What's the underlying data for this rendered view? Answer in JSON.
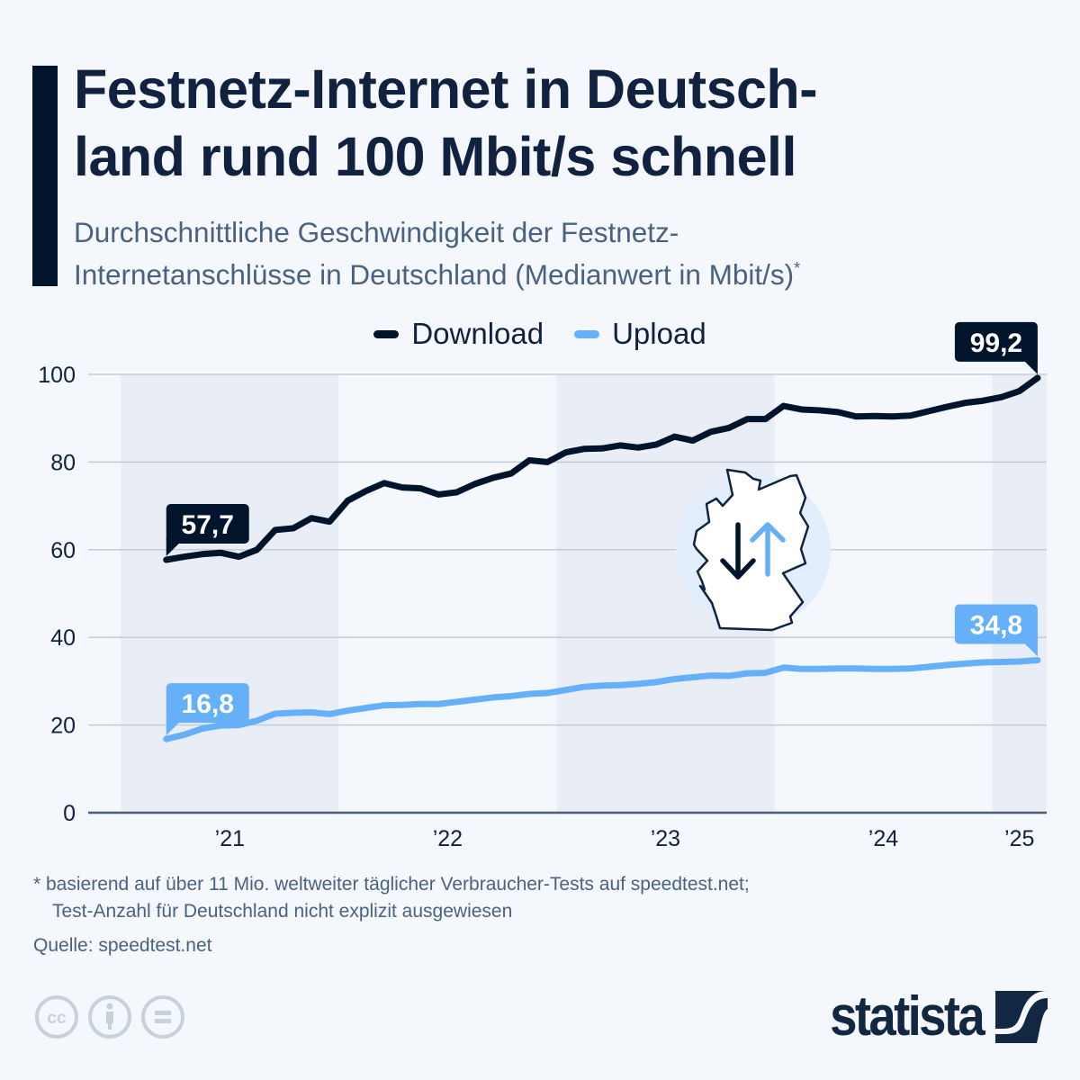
{
  "header": {
    "title": "Festnetz-Internet in Deutsch-land rund 100 Mbit/s schnell",
    "title_line1": "Festnetz-Internet in Deutsch-",
    "title_line2": "land rund 100 Mbit/s schnell",
    "subtitle_line1": "Durchschnittliche Geschwindigkeit der Festnetz-",
    "subtitle_line2": "Internetanschlüsse in Deutschland (Medianwert in Mbit/s)",
    "subtitle_marker": "*"
  },
  "colors": {
    "download": "#00152b",
    "upload": "#66b0f9",
    "background": "#f4f7fb",
    "band": "#e9eef6",
    "grid": "#c4ccd8",
    "text": "#10223f",
    "muted_text": "#4a6280"
  },
  "chart_data": {
    "type": "line",
    "title": "Festnetz-Internet in Deutschland rund 100 Mbit/s schnell",
    "subtitle": "Durchschnittliche Geschwindigkeit der Festnetz-Internetanschlüsse in Deutschland (Medianwert in Mbit/s)*",
    "xlabel": "",
    "ylabel": "",
    "ylim": [
      0,
      100
    ],
    "yticks": [
      0,
      20,
      40,
      60,
      80,
      100
    ],
    "ytick_labels": [
      "0",
      "20",
      "40",
      "60",
      "80",
      "100"
    ],
    "x_start": "2021-03",
    "x_end": "2025-03",
    "x_frequency": "monthly",
    "x_range_years": [
      2020.85,
      2025.25
    ],
    "xticks": [
      {
        "label": "’21",
        "year": 2021
      },
      {
        "label": "’22",
        "year": 2022
      },
      {
        "label": "’23",
        "year": 2023
      },
      {
        "label": "’24",
        "year": 2024
      },
      {
        "label": "’25",
        "year": 2025
      }
    ],
    "shaded_years": [
      2021,
      2023,
      2025
    ],
    "grid": true,
    "legend_position": "top-center",
    "series": [
      {
        "name": "Download",
        "color": "#00152b",
        "values": [
          57.7,
          58.4,
          59.0,
          59.3,
          58.4,
          60.0,
          64.5,
          64.9,
          67.2,
          66.4,
          71.2,
          73.4,
          75.2,
          74.2,
          74.0,
          72.6,
          73.1,
          75.0,
          76.4,
          77.4,
          80.4,
          80.0,
          82.2,
          83.0,
          83.1,
          83.8,
          83.3,
          84.0,
          85.8,
          84.9,
          86.9,
          87.8,
          89.8,
          89.8,
          92.8,
          92.0,
          91.8,
          91.4,
          90.4,
          90.5,
          90.4,
          90.6,
          91.6,
          92.6,
          93.5,
          94.0,
          94.8,
          96.2,
          99.2
        ],
        "start_label": "57,7",
        "end_label": "99,2"
      },
      {
        "name": "Upload",
        "color": "#66b0f9",
        "values": [
          16.8,
          17.8,
          19.2,
          19.9,
          20.0,
          21.0,
          22.6,
          22.8,
          22.9,
          22.5,
          23.3,
          23.9,
          24.5,
          24.6,
          24.8,
          24.8,
          25.3,
          25.8,
          26.3,
          26.6,
          27.1,
          27.3,
          28.0,
          28.7,
          29.0,
          29.1,
          29.4,
          29.8,
          30.5,
          30.9,
          31.3,
          31.2,
          31.8,
          31.9,
          33.1,
          32.8,
          32.8,
          32.9,
          32.9,
          32.8,
          32.8,
          32.9,
          33.3,
          33.7,
          34.0,
          34.3,
          34.4,
          34.5,
          34.8
        ],
        "start_label": "16,8",
        "end_label": "34,8"
      }
    ]
  },
  "legend": {
    "items": [
      {
        "label": "Download",
        "icon": "line-swatch-dark"
      },
      {
        "label": "Upload",
        "icon": "line-swatch-light-blue"
      }
    ]
  },
  "illustration": {
    "icon": "germany-map-with-download-upload-arrows-icon"
  },
  "footer": {
    "footnote_line1": "* basierend auf über 11 Mio. weltweiter täglicher Verbraucher-Tests auf speedtest.net;",
    "footnote_line2": "Test-Anzahl für Deutschland nicht explizit ausgewiesen",
    "source": "Quelle: speedtest.net",
    "license_icons": [
      "creative-commons-icon",
      "attribution-icon",
      "no-derivatives-icon"
    ],
    "brand": "statista"
  }
}
